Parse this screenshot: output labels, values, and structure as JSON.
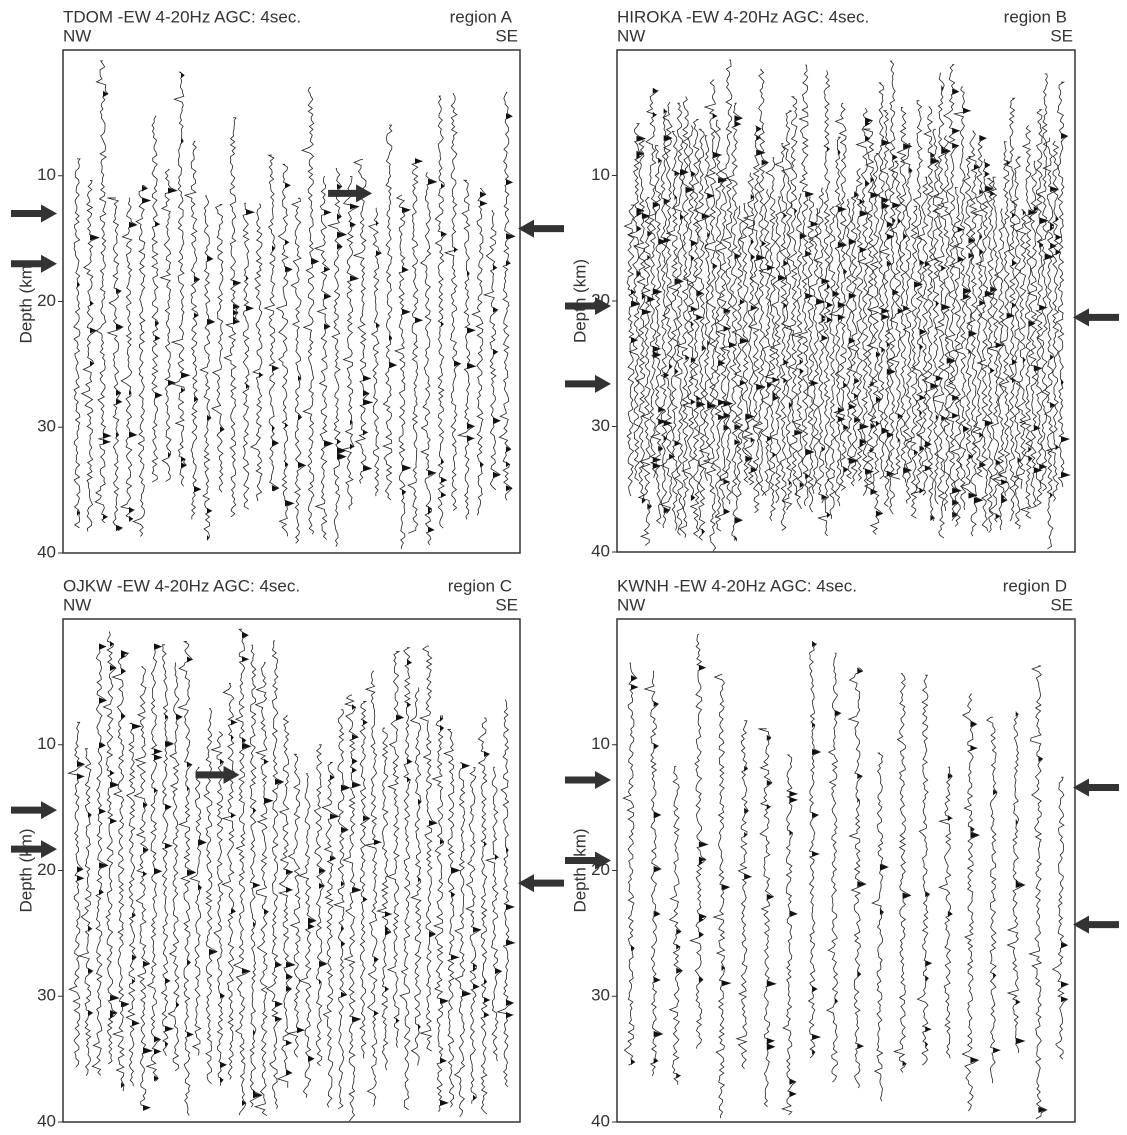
{
  "chart_data": [
    {
      "type": "wiggle",
      "title": "TDOM -EW  4-20Hz AGC: 4sec.",
      "annotation": "region A",
      "left_label": "NW",
      "right_label": "SE",
      "ylabel": "Depth (km)",
      "ylim": [
        0,
        40
      ],
      "yticks": [
        10,
        20,
        30,
        40
      ],
      "inverted": true,
      "arrows": [
        {
          "side": "left",
          "depth": 13
        },
        {
          "side": "left",
          "depth": 17
        },
        {
          "side": "right",
          "depth": 14.2
        },
        {
          "side": "inside",
          "depth": 11.4
        }
      ]
    },
    {
      "type": "wiggle",
      "title": "HIROKA -EW  4-20Hz AGC: 4sec.",
      "annotation": "region B",
      "left_label": "NW",
      "right_label": "SE",
      "ylabel": "Depth (km)",
      "ylim": [
        0,
        40
      ],
      "yticks": [
        10,
        20,
        30,
        40
      ],
      "inverted": true,
      "arrows": [
        {
          "side": "left",
          "depth": 20.4
        },
        {
          "side": "left",
          "depth": 26.6
        },
        {
          "side": "right",
          "depth": 21.3
        }
      ]
    },
    {
      "type": "wiggle",
      "title": "OJKW -EW  4-20Hz AGC: 4sec.",
      "annotation": "region C",
      "left_label": "NW",
      "right_label": "SE",
      "ylabel": "Depth (km)",
      "ylim": [
        0,
        40
      ],
      "yticks": [
        10,
        20,
        30,
        40
      ],
      "inverted": true,
      "arrows": [
        {
          "side": "left",
          "depth": 15.2
        },
        {
          "side": "left",
          "depth": 18.3
        },
        {
          "side": "right",
          "depth": 21
        },
        {
          "side": "inside",
          "depth": 12.4
        }
      ]
    },
    {
      "type": "wiggle",
      "title": "KWNH -EW  4-20Hz AGC: 4sec.",
      "annotation": "region D",
      "left_label": "NW",
      "right_label": "SE",
      "ylabel": "Depth (km)",
      "ylim": [
        0,
        40
      ],
      "yticks": [
        10,
        20,
        30,
        40
      ],
      "inverted": true,
      "arrows": [
        {
          "side": "left",
          "depth": 12.8
        },
        {
          "side": "left",
          "depth": 19.2
        },
        {
          "side": "right",
          "depth": 13.4
        },
        {
          "side": "right",
          "depth": 24.3
        }
      ]
    }
  ]
}
